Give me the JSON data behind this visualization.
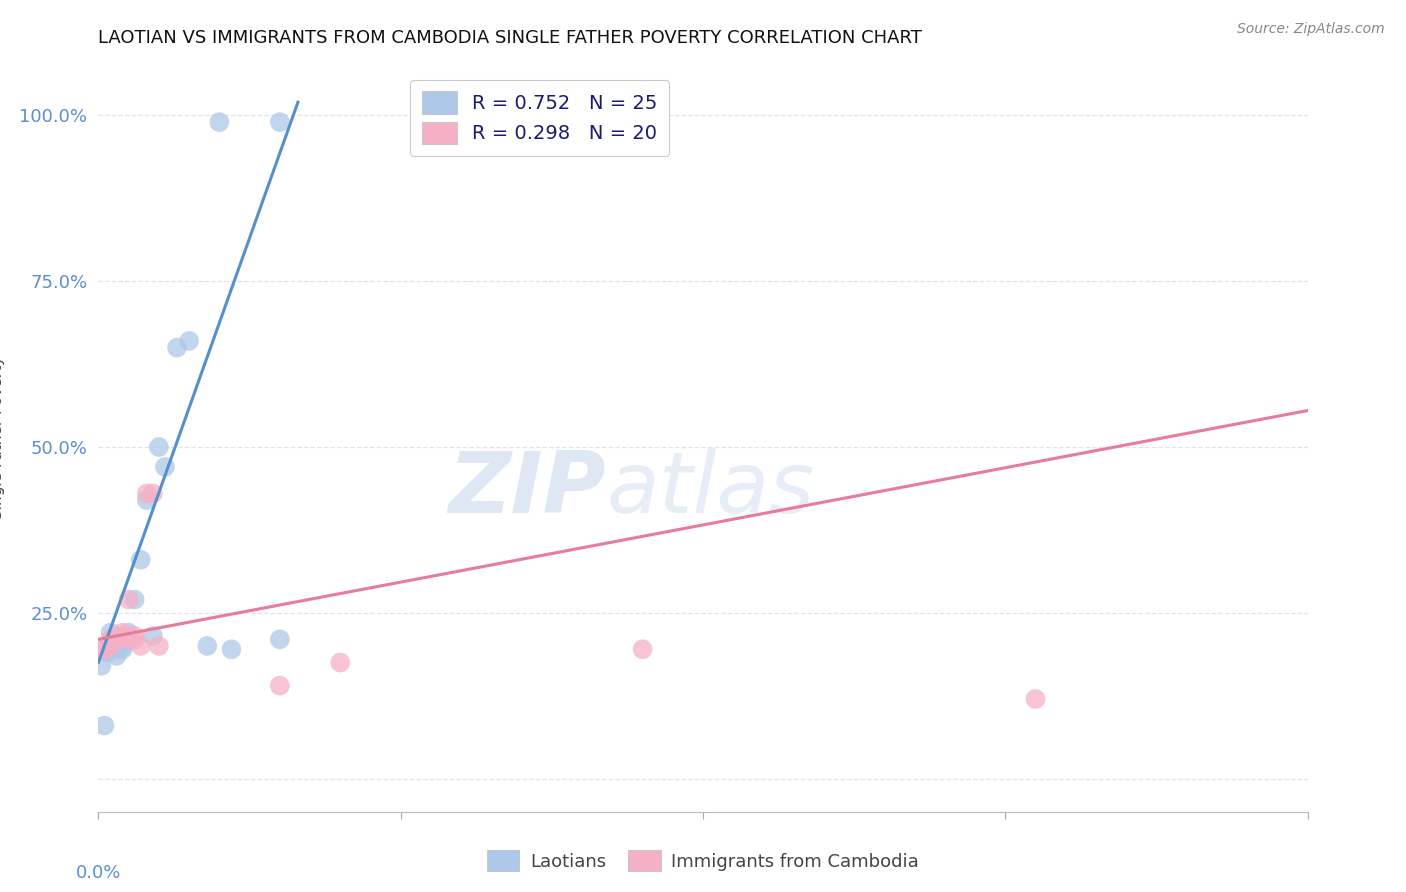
{
  "title": "LAOTIAN VS IMMIGRANTS FROM CAMBODIA SINGLE FATHER POVERTY CORRELATION CHART",
  "source": "Source: ZipAtlas.com",
  "ylabel": "Single Father Poverty",
  "ytick_labels": [
    "",
    "25.0%",
    "50.0%",
    "75.0%",
    "100.0%"
  ],
  "ytick_values": [
    0,
    0.25,
    0.5,
    0.75,
    1.0
  ],
  "xlim": [
    0.0,
    0.2
  ],
  "ylim": [
    -0.05,
    1.08
  ],
  "legend_blue_label": "R = 0.752   N = 25",
  "legend_pink_label": "R = 0.298   N = 20",
  "legend_laotians": "Laotians",
  "legend_cambodia": "Immigrants from Cambodia",
  "blue_color": "#adc8e8",
  "pink_color": "#f5b0c5",
  "blue_line_color": "#5590cc",
  "pink_line_color": "#e87a9a",
  "watermark_zip": "ZIP",
  "watermark_atlas": "atlas",
  "blue_line_x": [
    0.0,
    0.033
  ],
  "blue_line_y": [
    0.175,
    1.02
  ],
  "pink_line_x": [
    0.0,
    0.2
  ],
  "pink_line_y": [
    0.21,
    0.555
  ],
  "blue_scatter_x": [
    0.0005,
    0.001,
    0.0015,
    0.002,
    0.002,
    0.0025,
    0.003,
    0.003,
    0.004,
    0.004,
    0.005,
    0.005,
    0.006,
    0.007,
    0.008,
    0.009,
    0.01,
    0.011,
    0.013,
    0.015,
    0.018,
    0.02,
    0.022,
    0.03,
    0.03
  ],
  "blue_scatter_y": [
    0.17,
    0.08,
    0.19,
    0.2,
    0.22,
    0.21,
    0.195,
    0.185,
    0.2,
    0.195,
    0.22,
    0.215,
    0.27,
    0.33,
    0.42,
    0.215,
    0.5,
    0.47,
    0.65,
    0.66,
    0.2,
    0.99,
    0.195,
    0.99,
    0.21
  ],
  "pink_scatter_x": [
    0.0005,
    0.001,
    0.002,
    0.002,
    0.003,
    0.003,
    0.004,
    0.004,
    0.005,
    0.005,
    0.006,
    0.006,
    0.007,
    0.008,
    0.009,
    0.01,
    0.03,
    0.04,
    0.09,
    0.155
  ],
  "pink_scatter_y": [
    0.195,
    0.195,
    0.21,
    0.2,
    0.215,
    0.21,
    0.22,
    0.215,
    0.21,
    0.27,
    0.215,
    0.21,
    0.2,
    0.43,
    0.43,
    0.2,
    0.14,
    0.175,
    0.195,
    0.12
  ],
  "background_color": "#ffffff",
  "grid_color": "#dde3ee",
  "title_fontsize": 13,
  "axis_label_fontsize": 11,
  "tick_label_color": "#5a8fd0",
  "scatter_size": 200
}
